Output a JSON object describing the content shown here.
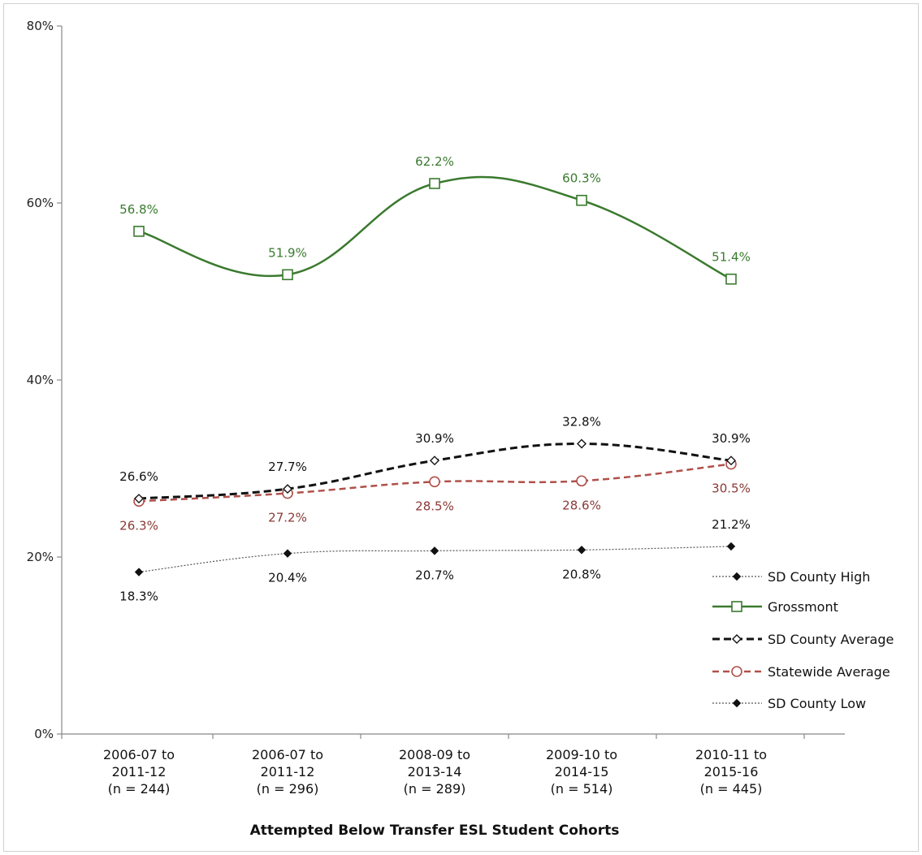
{
  "chart_data": {
    "type": "line",
    "xlabel": "Attempted Below Transfer ESL Student Cohorts",
    "ylabel": "",
    "ylim": [
      0,
      80
    ],
    "y_ticks": [
      "0%",
      "20%",
      "40%",
      "60%",
      "80%"
    ],
    "y_tick_values": [
      0,
      20,
      40,
      60,
      80
    ],
    "categories": [
      [
        "2006-07 to",
        "2011-12",
        "(n = 244)"
      ],
      [
        "2006-07 to",
        "2011-12",
        "(n = 296)"
      ],
      [
        "2008-09 to",
        "2013-14",
        "(n = 289)"
      ],
      [
        "2009-10 to",
        "2014-15",
        "(n = 514)"
      ],
      [
        "2010-11 to",
        "2015-16",
        "(n = 445)"
      ]
    ],
    "grid": false,
    "legend_position": "bottom-right",
    "series": [
      {
        "name": "SD County High",
        "values": [
          18.3,
          20.4,
          20.7,
          20.8,
          21.2
        ],
        "labels": [
          "18.3%",
          "20.4%",
          "20.7%",
          "20.8%",
          "21.2%"
        ],
        "label_pos": [
          "below",
          "below",
          "below",
          "below",
          "above"
        ],
        "color": "#555555",
        "label_color": "#111111",
        "marker": "diamond-filled",
        "dash": "2,2",
        "width": 1.2
      },
      {
        "name": "Grossmont",
        "values": [
          56.8,
          51.9,
          62.2,
          60.3,
          51.4
        ],
        "labels": [
          "56.8%",
          "51.9%",
          "62.2%",
          "60.3%",
          "51.4%"
        ],
        "label_pos": [
          "above",
          "above",
          "above",
          "above",
          "above"
        ],
        "color": "#3a7a2e",
        "label_color": "#3a7a2e",
        "marker": "square-open",
        "dash": "",
        "width": 2.5
      },
      {
        "name": "SD County Average",
        "values": [
          26.6,
          27.7,
          30.9,
          32.8,
          30.9
        ],
        "labels": [
          "26.6%",
          "27.7%",
          "30.9%",
          "32.8%",
          "30.9%"
        ],
        "label_pos": [
          "above",
          "above",
          "above",
          "above",
          "above"
        ],
        "color": "#111111",
        "label_color": "#111111",
        "marker": "diamond-open",
        "dash": "9,5",
        "width": 3
      },
      {
        "name": "Statewide Average",
        "values": [
          26.3,
          27.2,
          28.5,
          28.6,
          30.5
        ],
        "labels": [
          "26.3%",
          "27.2%",
          "28.5%",
          "28.6%",
          "30.5%"
        ],
        "label_pos": [
          "below",
          "below",
          "below",
          "below",
          "below"
        ],
        "color": "#b0504a",
        "label_color": "#8a3a36",
        "marker": "circle-open",
        "dash": "8,5",
        "width": 2.5
      },
      {
        "name": "SD County Low",
        "values": [
          18.3,
          20.4,
          20.7,
          20.8,
          21.2
        ],
        "labels": [],
        "label_pos": [],
        "color": "#555555",
        "label_color": "#111111",
        "marker": "diamond-filled",
        "dash": "2,2",
        "width": 1.2
      }
    ]
  }
}
